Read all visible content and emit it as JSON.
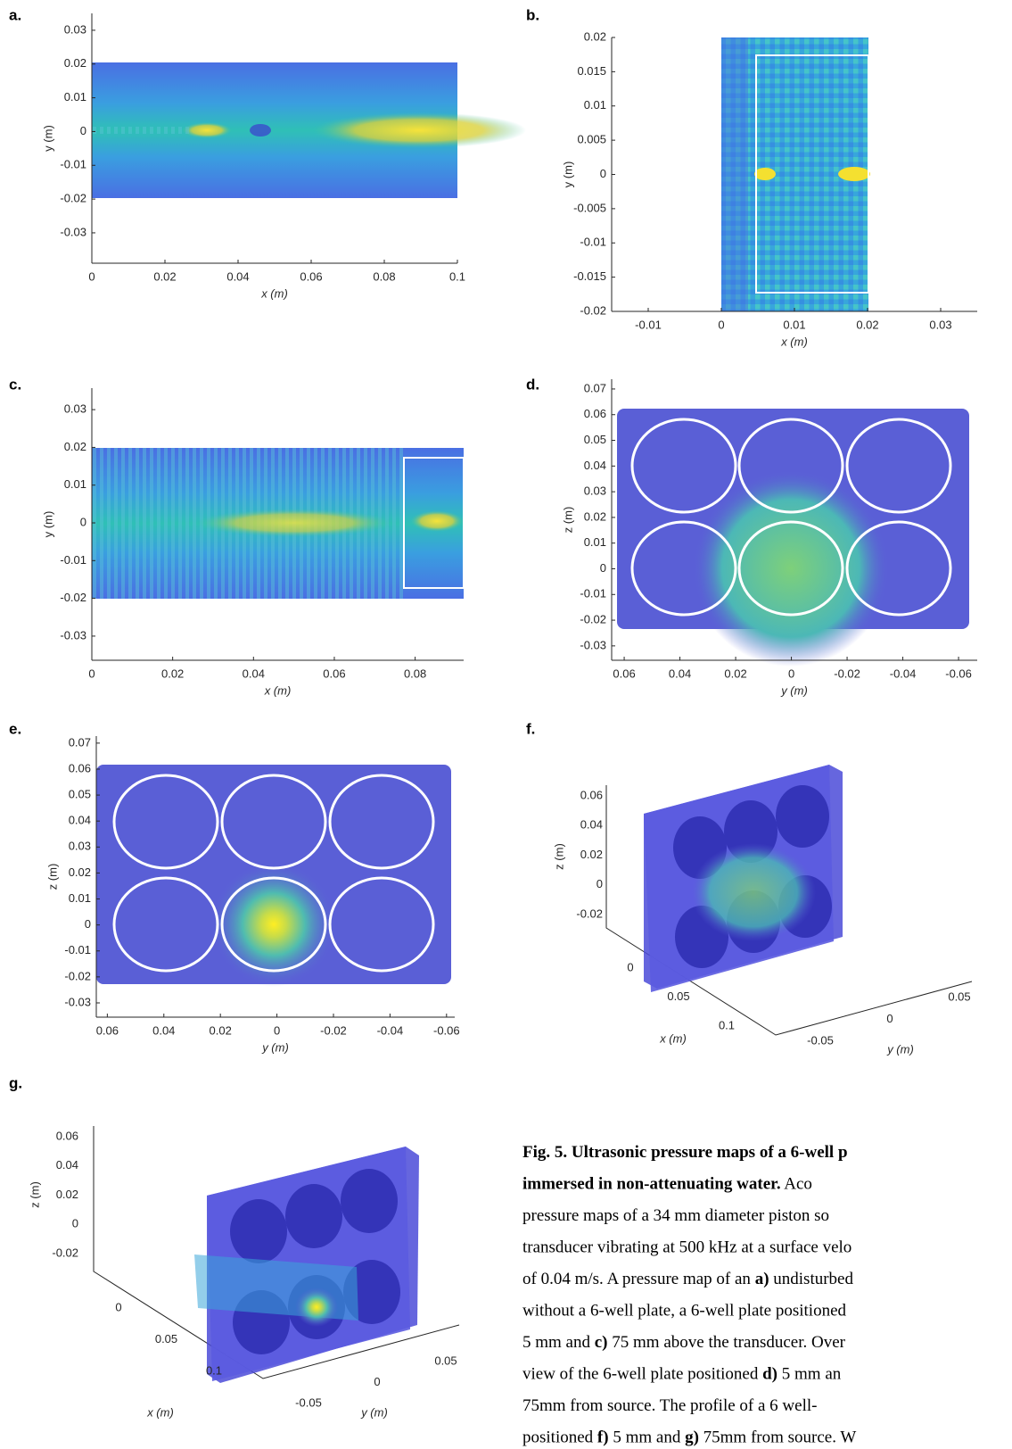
{
  "figure": {
    "panels": [
      {
        "label": "a.",
        "xlabel": "x (m)",
        "ylabel": "y (m)",
        "xlim": [
          0,
          0.1
        ],
        "ylim": [
          -0.039,
          0.035
        ],
        "xticks": [
          0,
          0.02,
          0.04,
          0.06,
          0.08,
          0.1
        ],
        "yticks": [
          0.03,
          0.02,
          0.01,
          0,
          -0.01,
          -0.02,
          -0.03
        ]
      },
      {
        "label": "b.",
        "xlabel": "x (m)",
        "ylabel": "y (m)",
        "xlim": [
          -0.015,
          0.035
        ],
        "ylim": [
          -0.02,
          0.02
        ],
        "xticks": [
          -0.01,
          0,
          0.01,
          0.02,
          0.03
        ],
        "yticks": [
          0.02,
          0.015,
          0.01,
          0.005,
          0,
          -0.005,
          -0.01,
          -0.015,
          -0.02
        ]
      },
      {
        "label": "c.",
        "xlabel": "x (m)",
        "ylabel": "y (m)",
        "xlim": [
          0,
          0.092
        ],
        "ylim": [
          -0.0364,
          0.0357
        ],
        "xticks": [
          0,
          0.02,
          0.04,
          0.06,
          0.08
        ],
        "yticks": [
          0.03,
          0.02,
          0.01,
          0,
          -0.01,
          -0.02,
          -0.03
        ]
      },
      {
        "label": "d.",
        "xlabel": "y (m)",
        "ylabel": "z (m)",
        "xlim": [
          0.0645,
          -0.0667
        ],
        "ylim": [
          -0.0356,
          0.0738
        ],
        "xticks": [
          0.06,
          0.04,
          0.02,
          0,
          -0.02,
          -0.04,
          -0.06
        ],
        "yticks": [
          0.07,
          0.06,
          0.05,
          0.04,
          0.03,
          0.02,
          0.01,
          0,
          -0.01,
          -0.02,
          -0.03
        ]
      },
      {
        "label": "e.",
        "xlabel": "y (m)",
        "ylabel": "z (m)",
        "xlim": [
          0.0639,
          -0.0629
        ],
        "ylim": [
          -0.0355,
          0.0727
        ],
        "xticks": [
          0.06,
          0.04,
          0.02,
          0,
          -0.02,
          -0.04,
          -0.06
        ],
        "yticks": [
          0.07,
          0.06,
          0.05,
          0.04,
          0.03,
          0.02,
          0.01,
          0,
          -0.01,
          -0.02,
          -0.03
        ]
      },
      {
        "label": "f.",
        "xlabel": "x (m)",
        "ylabel": "y (m)",
        "zlabel": "z (m)",
        "xticks": [
          0,
          0.05,
          0.1
        ],
        "yticks": [
          -0.05,
          0,
          0.05
        ],
        "zticks": [
          0.06,
          0.04,
          0.02,
          0,
          -0.02
        ]
      },
      {
        "label": "g.",
        "xlabel": "x (m)",
        "ylabel": "y (m)",
        "zlabel": "z (m)",
        "xticks": [
          0,
          0.05,
          0.1
        ],
        "yticks": [
          -0.05,
          0,
          0.05
        ],
        "zticks": [
          0.06,
          0.04,
          0.02,
          0,
          -0.02
        ]
      }
    ],
    "caption": [
      [
        {
          "text": "Fig. 5. Ultrasonic pressure maps of a 6-well p",
          "bold": true
        }
      ],
      [
        {
          "text": "immersed in non-attenuating water.",
          "bold": true
        },
        {
          "text": " Aco",
          "bold": false
        }
      ],
      [
        {
          "text": "pressure maps of a 34 mm diameter piston so",
          "bold": false
        }
      ],
      [
        {
          "text": "transducer vibrating at 500 kHz at a surface velo",
          "bold": false
        }
      ],
      [
        {
          "text": "of 0.04 m/s. A pressure map of an ",
          "bold": false
        },
        {
          "text": "a)",
          "bold": true
        },
        {
          "text": " undisturbed",
          "bold": false
        }
      ],
      [
        {
          "text": "without a 6-well plate, a 6-well plate positioned",
          "bold": false
        }
      ],
      [
        {
          "text": "5 mm and ",
          "bold": false
        },
        {
          "text": "c)",
          "bold": true
        },
        {
          "text": " 75 mm above the transducer. Over",
          "bold": false
        }
      ],
      [
        {
          "text": "view of the 6-well plate positioned ",
          "bold": false
        },
        {
          "text": "d)",
          "bold": true
        },
        {
          "text": " 5 mm an",
          "bold": false
        }
      ],
      [
        {
          "text": "75mm from source. The profile of a 6 well-",
          "bold": false
        }
      ],
      [
        {
          "text": "positioned ",
          "bold": false
        },
        {
          "text": "f)",
          "bold": true
        },
        {
          "text": " 5 mm and ",
          "bold": false
        },
        {
          "text": "g)",
          "bold": true
        },
        {
          "text": " 75mm from source. W",
          "bold": false
        }
      ]
    ]
  }
}
